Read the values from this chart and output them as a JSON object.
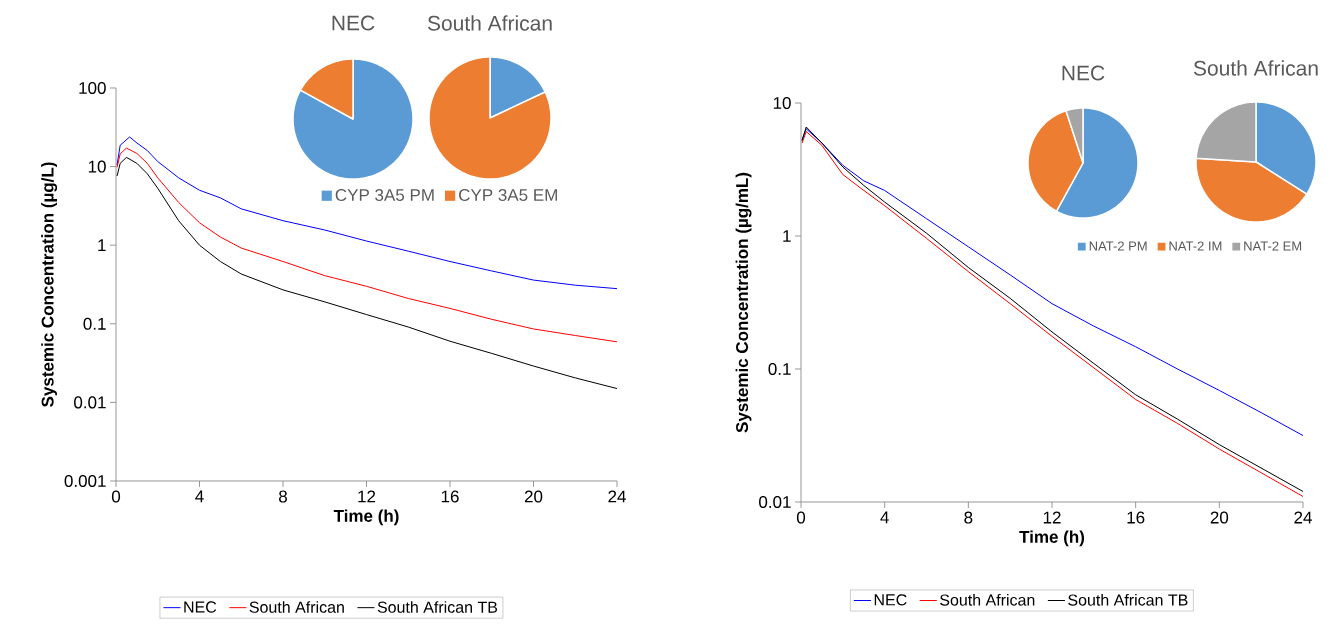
{
  "chart_data": [
    {
      "type": "line",
      "xlabel": "Time (h)",
      "ylabel": "Systemic Concentration (µg/L)",
      "log": "y",
      "legend": "bottom",
      "xlim": [
        0,
        24
      ],
      "ylim": [
        0.001,
        100
      ],
      "xticks": [
        0,
        4,
        8,
        12,
        16,
        20,
        24
      ],
      "yticks": [
        0.001,
        0.01,
        0.1,
        1,
        10,
        100
      ],
      "series": [
        {
          "name": "NEC",
          "color": "#0000ff",
          "x": [
            0.05,
            0.2,
            0.65,
            1,
            1.5,
            2,
            3,
            4,
            5,
            6,
            8,
            10,
            12,
            14,
            16,
            18,
            20,
            22,
            24
          ],
          "values": [
            10.5,
            18.7,
            23.8,
            20,
            16,
            11.6,
            7.2,
            5.0,
            4.0,
            2.9,
            2.05,
            1.56,
            1.13,
            0.84,
            0.62,
            0.47,
            0.36,
            0.31,
            0.28
          ]
        },
        {
          "name": "South African",
          "color": "#ff0000",
          "x": [
            0.05,
            0.2,
            0.5,
            1,
            1.5,
            2,
            3,
            4,
            5,
            6,
            8,
            10,
            12,
            14,
            16,
            18,
            20,
            22,
            24
          ],
          "values": [
            9.8,
            14.5,
            17.2,
            14.7,
            11,
            7.2,
            3.5,
            1.93,
            1.27,
            0.92,
            0.62,
            0.41,
            0.3,
            0.21,
            0.157,
            0.114,
            0.086,
            0.071,
            0.059
          ]
        },
        {
          "name": "South African TB",
          "color": "#000000",
          "x": [
            0.05,
            0.2,
            0.5,
            1,
            1.5,
            2,
            3,
            4,
            5,
            6,
            8,
            10,
            12,
            14,
            16,
            18,
            20,
            22,
            24
          ],
          "values": [
            7.6,
            11,
            13.1,
            11,
            8.1,
            5.3,
            2.05,
            1.0,
            0.62,
            0.43,
            0.27,
            0.19,
            0.131,
            0.091,
            0.06,
            0.042,
            0.029,
            0.0205,
            0.015
          ]
        }
      ]
    },
    {
      "type": "pie",
      "title": "NEC",
      "categories": [
        "CYP 3A5 PM",
        "CYP 3A5 EM"
      ],
      "values": [
        83,
        17
      ],
      "colors": [
        "#5b9bd5",
        "#ed7d31"
      ],
      "legend": "bottom"
    },
    {
      "type": "pie",
      "title": "South African",
      "categories": [
        null,
        null
      ],
      "values": [
        18,
        82
      ],
      "colors": [
        "#5b9bd5",
        "#ed7d31"
      ]
    },
    {
      "type": "line",
      "xlabel": "Time (h)",
      "ylabel": "Systemic Concentration (µg/mL)",
      "log": "y",
      "legend": "bottom",
      "xlim": [
        0,
        24
      ],
      "ylim": [
        0.01,
        10
      ],
      "xticks": [
        0,
        4,
        8,
        12,
        16,
        20,
        24
      ],
      "yticks": [
        0.01,
        0.1,
        1,
        10
      ],
      "series": [
        {
          "name": "NEC",
          "color": "#0000ff",
          "x": [
            0.05,
            0.25,
            1,
            2,
            3,
            4,
            6,
            8,
            10,
            12,
            14,
            16,
            18,
            20,
            22,
            24
          ],
          "values": [
            5.3,
            6.4,
            5.0,
            3.4,
            2.6,
            2.2,
            1.35,
            0.83,
            0.51,
            0.31,
            0.21,
            0.147,
            0.1,
            0.069,
            0.047,
            0.0316
          ]
        },
        {
          "name": "South African",
          "color": "#ff0000",
          "x": [
            0.05,
            0.25,
            1,
            2,
            3,
            4,
            6,
            8,
            10,
            12,
            14,
            16,
            18,
            20,
            22,
            24
          ],
          "values": [
            5.0,
            6.1,
            4.8,
            2.9,
            2.2,
            1.69,
            0.96,
            0.54,
            0.31,
            0.176,
            0.102,
            0.059,
            0.039,
            0.025,
            0.0166,
            0.011
          ]
        },
        {
          "name": "South African TB",
          "color": "#000000",
          "x": [
            0.05,
            0.25,
            1,
            2,
            3,
            4,
            6,
            8,
            10,
            12,
            14,
            16,
            18,
            20,
            22,
            24
          ],
          "values": [
            5.2,
            6.6,
            5.0,
            3.3,
            2.4,
            1.8,
            1.05,
            0.58,
            0.34,
            0.19,
            0.11,
            0.064,
            0.042,
            0.027,
            0.018,
            0.012
          ]
        }
      ]
    },
    {
      "type": "pie",
      "title": "NEC",
      "categories": [
        "NAT-2 PM",
        "NAT-2 IM",
        "NAT-2 EM"
      ],
      "values": [
        58,
        37,
        5
      ],
      "colors": [
        "#5b9bd5",
        "#ed7d31",
        "#a5a5a5"
      ],
      "legend": "bottom"
    },
    {
      "type": "pie",
      "title": "South African",
      "categories": [
        null,
        null,
        null
      ],
      "values": [
        34,
        42,
        24
      ],
      "colors": [
        "#5b9bd5",
        "#ed7d31",
        "#a5a5a5"
      ]
    }
  ]
}
